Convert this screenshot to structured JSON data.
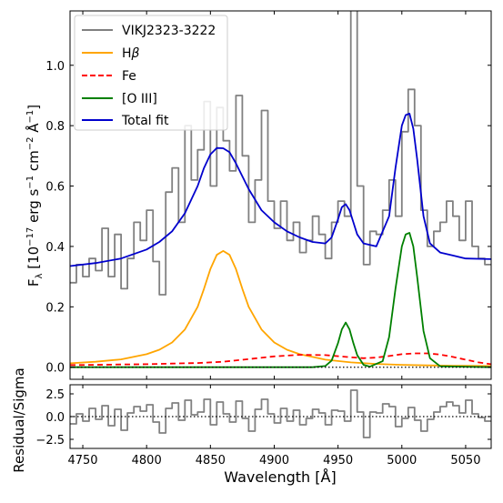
{
  "chart_data": [
    {
      "type": "line",
      "panel": "main",
      "xlim": [
        4740,
        5070
      ],
      "ylim": [
        -0.04,
        1.18
      ],
      "grid": false,
      "legend_position": "top-left",
      "ylabel_base": "F",
      "ylabel_sub": "λ",
      "ylabel_unit": "[10",
      "ylabel_exp1": "−17",
      "ylabel_mid": "erg s",
      "ylabel_exp2": "−1",
      "ylabel_mid2": "cm",
      "ylabel_exp3": "−2",
      "ylabel_mid3": "Å",
      "ylabel_exp4": "−1",
      "ylabel_end": "]",
      "yticks": [
        0.0,
        0.2,
        0.4,
        0.6,
        0.8,
        1.0
      ],
      "ytick_labels": [
        "0.0",
        "0.2",
        "0.4",
        "0.6",
        "0.8",
        "1.0"
      ],
      "series": [
        {
          "name": "VIKJ2323-3222",
          "color": "#808080",
          "style": "steps",
          "x": [
            4740,
            4745,
            4750,
            4755,
            4760,
            4765,
            4770,
            4775,
            4780,
            4785,
            4790,
            4795,
            4800,
            4805,
            4810,
            4815,
            4820,
            4825,
            4830,
            4835,
            4840,
            4845,
            4850,
            4855,
            4860,
            4865,
            4870,
            4875,
            4880,
            4885,
            4890,
            4895,
            4900,
            4905,
            4910,
            4915,
            4920,
            4925,
            4930,
            4935,
            4940,
            4945,
            4950,
            4955,
            4960,
            4965,
            4970,
            4975,
            4980,
            4985,
            4990,
            4995,
            5000,
            5005,
            5010,
            5015,
            5020,
            5025,
            5030,
            5035,
            5040,
            5045,
            5050,
            5055,
            5060,
            5065
          ],
          "y": [
            0.28,
            0.34,
            0.3,
            0.36,
            0.32,
            0.46,
            0.3,
            0.44,
            0.26,
            0.36,
            0.48,
            0.42,
            0.52,
            0.35,
            0.24,
            0.58,
            0.66,
            0.48,
            0.8,
            0.62,
            0.72,
            0.88,
            0.6,
            0.86,
            0.75,
            0.65,
            0.9,
            0.7,
            0.48,
            0.62,
            0.85,
            0.55,
            0.46,
            0.55,
            0.42,
            0.48,
            0.38,
            0.42,
            0.5,
            0.44,
            0.36,
            0.48,
            0.55,
            0.5,
            1.2,
            0.6,
            0.34,
            0.45,
            0.44,
            0.52,
            0.62,
            0.5,
            0.78,
            0.92,
            0.8,
            0.52,
            0.4,
            0.45,
            0.48,
            0.55,
            0.5,
            0.42,
            0.55,
            0.4,
            0.36,
            0.34
          ]
        },
        {
          "name": "Hβ",
          "name_base": "H",
          "name_greek": "β",
          "color": "#ffa500",
          "style": "solid",
          "x": [
            4740,
            4760,
            4780,
            4800,
            4810,
            4820,
            4830,
            4840,
            4845,
            4850,
            4855,
            4860,
            4865,
            4870,
            4875,
            4880,
            4890,
            4900,
            4910,
            4920,
            4940,
            4960,
            4980,
            5000,
            5020,
            5040,
            5070
          ],
          "y": [
            0.013,
            0.018,
            0.026,
            0.043,
            0.058,
            0.082,
            0.125,
            0.2,
            0.26,
            0.325,
            0.372,
            0.385,
            0.372,
            0.325,
            0.26,
            0.2,
            0.125,
            0.082,
            0.058,
            0.043,
            0.025,
            0.016,
            0.011,
            0.008,
            0.006,
            0.005,
            0.004
          ]
        },
        {
          "name": "Fe",
          "color": "#ff0000",
          "style": "dashed",
          "x": [
            4740,
            4760,
            4780,
            4800,
            4820,
            4840,
            4860,
            4880,
            4900,
            4920,
            4940,
            4960,
            4970,
            4980,
            4990,
            5000,
            5010,
            5020,
            5030,
            5040,
            5050,
            5060,
            5070
          ],
          "y": [
            0.007,
            0.008,
            0.009,
            0.01,
            0.012,
            0.014,
            0.018,
            0.027,
            0.036,
            0.041,
            0.04,
            0.033,
            0.03,
            0.032,
            0.037,
            0.043,
            0.046,
            0.046,
            0.042,
            0.034,
            0.025,
            0.016,
            0.01
          ]
        },
        {
          "name": "[O III]",
          "color": "#008000",
          "style": "solid",
          "x": [
            4740,
            4930,
            4940,
            4945,
            4950,
            4953,
            4956,
            4959,
            4962,
            4965,
            4970,
            4975,
            4985,
            4990,
            4995,
            5000,
            5003,
            5006,
            5009,
            5012,
            5017,
            5022,
            5030,
            5070
          ],
          "y": [
            0,
            0,
            0.004,
            0.022,
            0.08,
            0.125,
            0.148,
            0.125,
            0.08,
            0.04,
            0.008,
            0.002,
            0.02,
            0.1,
            0.26,
            0.4,
            0.44,
            0.445,
            0.4,
            0.3,
            0.12,
            0.03,
            0.003,
            0
          ]
        },
        {
          "name": "Total fit",
          "color": "#0000cd",
          "style": "solid",
          "x": [
            4740,
            4760,
            4780,
            4800,
            4810,
            4820,
            4830,
            4840,
            4845,
            4850,
            4855,
            4860,
            4865,
            4870,
            4880,
            4890,
            4900,
            4910,
            4920,
            4930,
            4940,
            4945,
            4950,
            4953,
            4956,
            4959,
            4962,
            4965,
            4970,
            4980,
            4990,
            4995,
            5000,
            5003,
            5006,
            5009,
            5012,
            5017,
            5022,
            5030,
            5040,
            5050,
            5070
          ],
          "y": [
            0.335,
            0.345,
            0.36,
            0.39,
            0.415,
            0.45,
            0.51,
            0.6,
            0.66,
            0.705,
            0.726,
            0.725,
            0.712,
            0.675,
            0.59,
            0.52,
            0.48,
            0.45,
            0.43,
            0.415,
            0.41,
            0.43,
            0.49,
            0.53,
            0.54,
            0.52,
            0.48,
            0.44,
            0.41,
            0.4,
            0.5,
            0.66,
            0.8,
            0.835,
            0.84,
            0.79,
            0.69,
            0.5,
            0.41,
            0.38,
            0.37,
            0.36,
            0.358
          ]
        }
      ],
      "zero_line": {
        "y": 0,
        "style": "dotted",
        "color": "#000000"
      }
    },
    {
      "type": "line",
      "panel": "residual",
      "xlim": [
        4740,
        5070
      ],
      "ylim": [
        -3.5,
        3.5
      ],
      "ylabel": "Residual/Sigma",
      "xlabel": "Wavelength [Å]",
      "yticks": [
        -2.5,
        0,
        2.5
      ],
      "ytick_labels": [
        "−2.5",
        "0.0",
        "2.5"
      ],
      "xticks": [
        4750,
        4800,
        4850,
        4900,
        4950,
        5000,
        5050
      ],
      "xtick_labels": [
        "4750",
        "4800",
        "4850",
        "4900",
        "4950",
        "5000",
        "5050"
      ],
      "series": [
        {
          "name": "",
          "color": "#808080",
          "style": "steps",
          "x": [
            4740,
            4745,
            4750,
            4755,
            4760,
            4765,
            4770,
            4775,
            4780,
            4785,
            4790,
            4795,
            4800,
            4805,
            4810,
            4815,
            4820,
            4825,
            4830,
            4835,
            4840,
            4845,
            4850,
            4855,
            4860,
            4865,
            4870,
            4875,
            4880,
            4885,
            4890,
            4895,
            4900,
            4905,
            4910,
            4915,
            4920,
            4925,
            4930,
            4935,
            4940,
            4945,
            4950,
            4955,
            4960,
            4965,
            4970,
            4975,
            4980,
            4985,
            4990,
            4995,
            5000,
            5005,
            5010,
            5015,
            5020,
            5025,
            5030,
            5035,
            5040,
            5045,
            5050,
            5055,
            5060,
            5065
          ],
          "y": [
            -0.8,
            0.3,
            -0.5,
            0.9,
            -0.3,
            1.2,
            -1.0,
            0.8,
            -1.5,
            0.4,
            1.1,
            0.6,
            1.3,
            -0.6,
            -1.8,
            0.9,
            1.5,
            -0.4,
            1.8,
            0.2,
            0.5,
            1.9,
            -0.9,
            1.6,
            0.3,
            -0.6,
            1.7,
            -0.2,
            -1.6,
            0.8,
            1.9,
            0.3,
            -0.7,
            0.9,
            -0.5,
            0.7,
            -0.9,
            -0.2,
            0.8,
            0.4,
            -0.9,
            0.7,
            0.6,
            -0.5,
            2.9,
            0.5,
            -2.3,
            0.5,
            0.4,
            1.4,
            1.1,
            -1.1,
            -0.2,
            1.0,
            -0.4,
            -1.6,
            -0.3,
            0.5,
            1.1,
            1.6,
            1.2,
            0.4,
            1.8,
            0.3,
            -0.1,
            -0.5
          ]
        }
      ],
      "zero_line": {
        "y": 0,
        "style": "dotted",
        "color": "#000000"
      }
    }
  ]
}
